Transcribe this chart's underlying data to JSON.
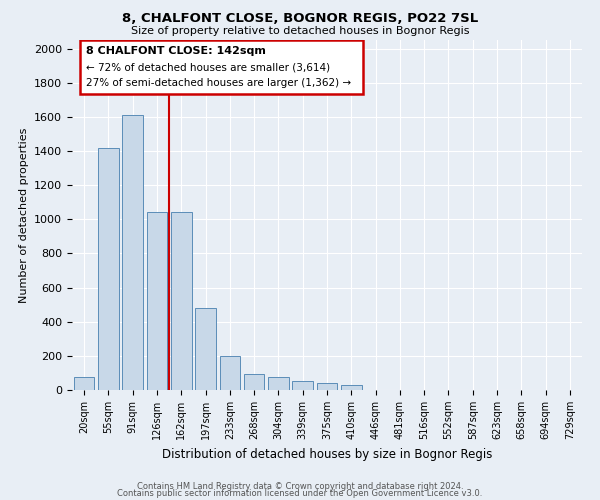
{
  "title": "8, CHALFONT CLOSE, BOGNOR REGIS, PO22 7SL",
  "subtitle": "Size of property relative to detached houses in Bognor Regis",
  "xlabel": "Distribution of detached houses by size in Bognor Regis",
  "ylabel": "Number of detached properties",
  "bar_color": "#c8d8e8",
  "bar_edge_color": "#5b8db8",
  "annotation_box_color": "#cc0000",
  "vertical_line_color": "#cc0000",
  "background_color": "#e8eef5",
  "grid_color": "#ffffff",
  "fig_background": "#e8eef5",
  "categories": [
    "20sqm",
    "55sqm",
    "91sqm",
    "126sqm",
    "162sqm",
    "197sqm",
    "233sqm",
    "268sqm",
    "304sqm",
    "339sqm",
    "375sqm",
    "410sqm",
    "446sqm",
    "481sqm",
    "516sqm",
    "552sqm",
    "587sqm",
    "623sqm",
    "658sqm",
    "694sqm",
    "729sqm"
  ],
  "values": [
    75,
    1415,
    1610,
    1040,
    1040,
    480,
    200,
    95,
    75,
    50,
    40,
    30,
    0,
    0,
    0,
    0,
    0,
    0,
    0,
    0,
    0
  ],
  "annotation_title": "8 CHALFONT CLOSE: 142sqm",
  "annotation_line1": "← 72% of detached houses are smaller (3,614)",
  "annotation_line2": "27% of semi-detached houses are larger (1,362) →",
  "vertical_line_x": 3.5,
  "ylim": [
    0,
    2050
  ],
  "yticks": [
    0,
    200,
    400,
    600,
    800,
    1000,
    1200,
    1400,
    1600,
    1800,
    2000
  ],
  "footer1": "Contains HM Land Registry data © Crown copyright and database right 2024.",
  "footer2": "Contains public sector information licensed under the Open Government Licence v3.0."
}
